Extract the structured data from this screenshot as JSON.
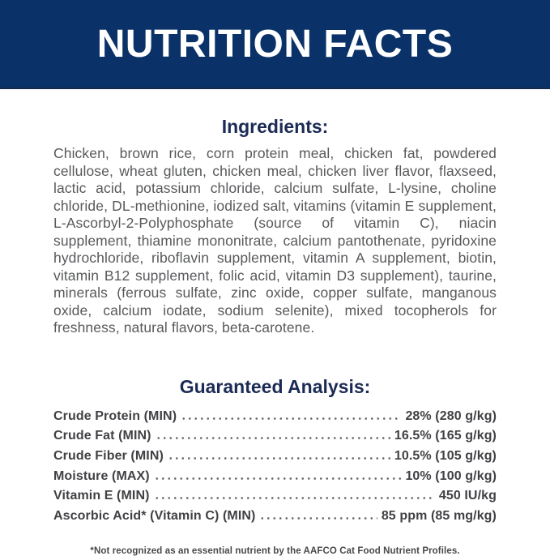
{
  "header": {
    "title": "NUTRITION FACTS"
  },
  "ingredients": {
    "heading": "Ingredients:",
    "text": "Chicken, brown rice, corn protein meal, chicken fat, powdered cellulose, wheat gluten, chicken meal, chicken liver flavor, flaxseed, lactic acid, potassium chloride, calcium sulfate, L-lysine, choline chloride, DL-methionine, iodized salt, vitamins (vitamin E supplement, L-Ascorbyl-2-Polyphosphate (source of vitamin C), niacin supplement, thiamine mononitrate, calcium pantothenate, pyridoxine hydrochloride, riboflavin supplement, vitamin A supplement, biotin, vitamin B12 supplement, folic acid, vitamin D3 supplement), taurine, minerals (ferrous sulfate, zinc oxide, copper sulfate, manganous oxide, calcium iodate, sodium selenite), mixed tocopherols for freshness, natural flavors, beta-carotene."
  },
  "analysis": {
    "heading": "Guaranteed Analysis:",
    "rows": [
      {
        "label": "Crude Protein (MIN)",
        "value": "28% (280 g/kg)"
      },
      {
        "label": "Crude Fat (MIN)",
        "value": "16.5% (165 g/kg)"
      },
      {
        "label": "Crude Fiber (MIN)",
        "value": "10.5% (105 g/kg)"
      },
      {
        "label": "Moisture (MAX)",
        "value": "10% (100 g/kg)"
      },
      {
        "label": "Vitamin E (MIN)",
        "value": "450 IU/kg"
      },
      {
        "label": "Ascorbic Acid* (Vitamin C) (MIN)",
        "value": "85 ppm (85 mg/kg)"
      }
    ]
  },
  "footnote": "*Not recognized as an essential nutrient by the AAFCO Cat Food Nutrient Profiles.",
  "colors": {
    "band_background": "#0a3268",
    "heading_navy": "#1c2b55",
    "body_gray": "#58595b",
    "analysis_gray": "#414145",
    "title_white": "#ffffff"
  }
}
